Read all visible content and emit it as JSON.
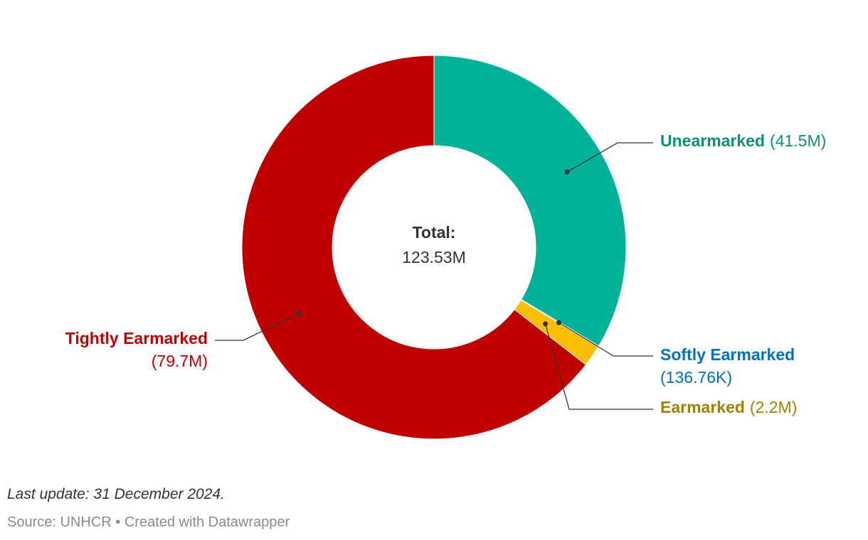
{
  "chart_data": {
    "type": "pie",
    "variant": "donut",
    "total": {
      "label": "Total:",
      "value": "123.53M"
    },
    "series": [
      {
        "name": "Unearmarked",
        "value": 41.5,
        "display": "(41.5M)",
        "color": "#00b398",
        "text_color": "#0e8f75"
      },
      {
        "name": "Softly Earmarked",
        "value": 0.13676,
        "display": "(136.76K)",
        "color": "#0072bc",
        "text_color": "#0072bc"
      },
      {
        "name": "Earmarked",
        "value": 2.2,
        "display": "(2.2M)",
        "color": "#fbbe00",
        "text_color": "#a47f00"
      },
      {
        "name": "Tightly Earmarked",
        "value": 79.7,
        "display": "(79.7M)",
        "color": "#c00000",
        "text_color": "#c00000"
      }
    ],
    "units": "M"
  },
  "footer": {
    "last_update": "Last update: 31 December 2024.",
    "source": "Source: UNHCR",
    "separator": "•",
    "credit": "Created with Datawrapper"
  }
}
